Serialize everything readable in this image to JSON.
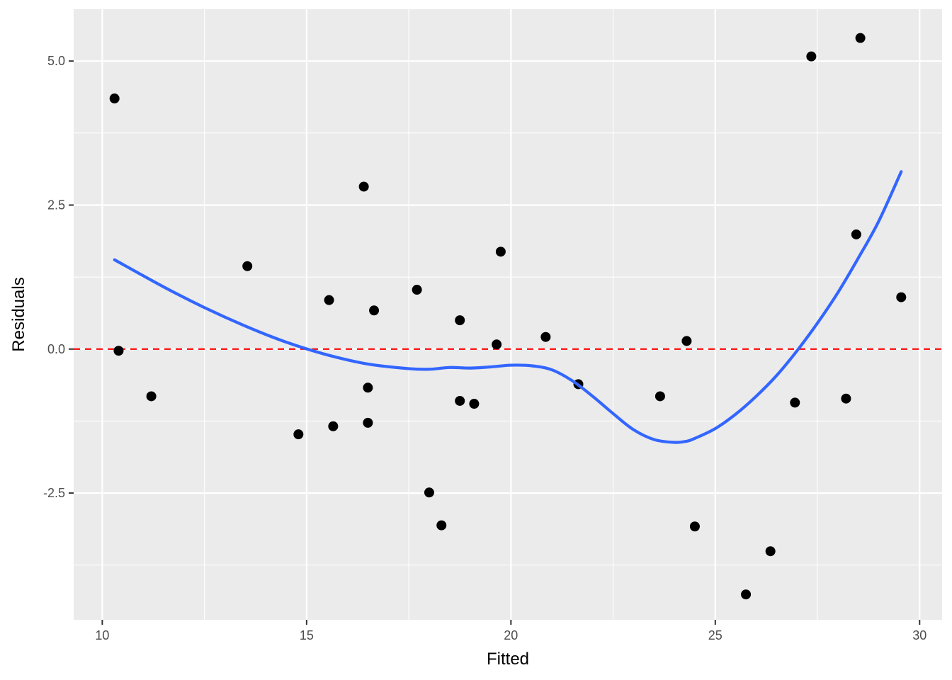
{
  "chart_data": {
    "type": "scatter",
    "xlabel": "Fitted",
    "ylabel": "Residuals",
    "xlim": [
      9.3,
      30.55
    ],
    "ylim": [
      -4.7,
      5.9
    ],
    "x_ticks": [
      10,
      15,
      20,
      25,
      30
    ],
    "x_tick_labels": [
      "10",
      "15",
      "20",
      "25",
      "30"
    ],
    "x_minor": [
      12.5,
      17.5,
      22.5,
      27.5
    ],
    "y_ticks": [
      -2.5,
      0.0,
      2.5,
      5.0
    ],
    "y_tick_labels": [
      "-2.5",
      "0.0",
      "2.5",
      "5.0"
    ],
    "y_minor": [
      -3.75,
      -1.25,
      1.25,
      3.75
    ],
    "grid": true,
    "background": "#ebebeb",
    "reference_line": {
      "y": 0,
      "color": "#ff0000",
      "style": "dashed"
    },
    "points": {
      "color": "#000000",
      "x": [
        10.3,
        10.4,
        11.2,
        13.55,
        14.8,
        15.55,
        15.65,
        16.4,
        16.5,
        16.5,
        16.65,
        17.7,
        18.0,
        18.3,
        18.75,
        18.75,
        19.1,
        19.65,
        19.75,
        20.85,
        21.65,
        23.65,
        24.3,
        24.5,
        25.75,
        26.35,
        26.95,
        27.35,
        28.2,
        28.45,
        28.55,
        29.55
      ],
      "y": [
        4.35,
        -0.03,
        -0.82,
        1.44,
        -1.48,
        0.85,
        -1.34,
        2.82,
        -0.67,
        -1.28,
        0.67,
        1.03,
        -2.49,
        -3.06,
        0.5,
        -0.9,
        -0.95,
        0.08,
        1.69,
        0.21,
        -0.61,
        -0.82,
        0.14,
        -3.08,
        -4.26,
        -3.51,
        -0.93,
        5.08,
        -0.86,
        1.99,
        5.4,
        0.9
      ]
    },
    "smooth": {
      "color": "#3366ff",
      "x": [
        10.3,
        11.5,
        12.5,
        13.5,
        14.5,
        15.5,
        16.5,
        17.5,
        18.0,
        18.5,
        19.0,
        19.5,
        20.0,
        20.5,
        21.0,
        21.5,
        22.0,
        22.5,
        23.0,
        23.5,
        24.0,
        24.3,
        24.5,
        25.0,
        25.5,
        26.0,
        26.5,
        27.0,
        27.5,
        28.0,
        28.5,
        29.0,
        29.55
      ],
      "y": [
        1.55,
        1.08,
        0.72,
        0.4,
        0.12,
        -0.1,
        -0.26,
        -0.34,
        -0.35,
        -0.32,
        -0.33,
        -0.31,
        -0.28,
        -0.29,
        -0.36,
        -0.55,
        -0.82,
        -1.12,
        -1.4,
        -1.57,
        -1.62,
        -1.6,
        -1.55,
        -1.38,
        -1.13,
        -0.82,
        -0.46,
        -0.03,
        0.45,
        0.98,
        1.58,
        2.22,
        3.08
      ]
    }
  }
}
